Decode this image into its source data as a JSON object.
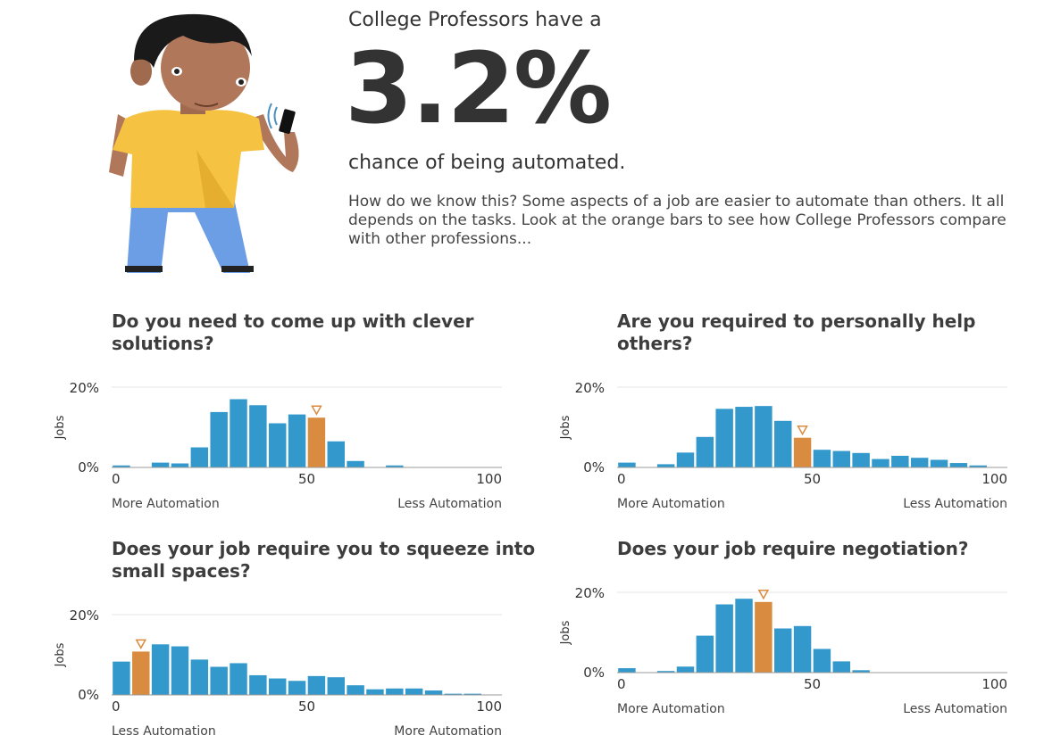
{
  "header": {
    "prefix": "College Professors have a",
    "percent": "3.2%",
    "suffix": "chance of being automated.",
    "intro": "How do we know this? Some aspects of a job are easier to automate than others. It all depends on the tasks. Look at the orange bars to see how College Professors compare with other professions..."
  },
  "colors": {
    "bar": "#3399cc",
    "highlight": "#d98c40",
    "axis": "#999999",
    "grid": "#e6e6e6"
  },
  "illustration": {
    "icon": "person-with-phone-icon"
  },
  "chart_data": [
    {
      "type": "bar",
      "title": "Do you need to come up with clever solutions?",
      "ylabel": "Jobs",
      "xlim": [
        0,
        100
      ],
      "ylim": [
        0,
        20
      ],
      "xticks": [
        "0",
        "50",
        "100"
      ],
      "yticks": [
        "0%",
        "20%"
      ],
      "left_label": "More Automation",
      "right_label": "Less Automation",
      "bin_width": 5,
      "values": [
        0.5,
        0,
        1.2,
        1,
        5,
        13.8,
        17,
        15.5,
        11,
        13.2,
        12.4,
        6.5,
        1.6,
        0,
        0.5,
        0,
        0,
        0,
        0,
        0
      ],
      "highlight_index": 10
    },
    {
      "type": "bar",
      "title": "Are you required to personally help others?",
      "ylabel": "Jobs",
      "xlim": [
        0,
        100
      ],
      "ylim": [
        0,
        20
      ],
      "xticks": [
        "0",
        "50",
        "100"
      ],
      "yticks": [
        "0%",
        "20%"
      ],
      "left_label": "More Automation",
      "right_label": "Less Automation",
      "bin_width": 5,
      "values": [
        1.2,
        0,
        0.8,
        3.7,
        7.6,
        14.6,
        15.1,
        15.3,
        11.6,
        7.4,
        4.4,
        4.1,
        3.6,
        2.1,
        2.9,
        2.4,
        1.9,
        1.1,
        0.5,
        0
      ],
      "highlight_index": 9
    },
    {
      "type": "bar",
      "title": "Does your job require you to squeeze into small spaces?",
      "ylabel": "Jobs",
      "xlim": [
        0,
        100
      ],
      "ylim": [
        0,
        20
      ],
      "xticks": [
        "0",
        "50",
        "100"
      ],
      "yticks": [
        "0%",
        "20%"
      ],
      "left_label": "Less Automation",
      "right_label": "More Automation",
      "bin_width": 5,
      "values": [
        8.3,
        10.8,
        12.6,
        12.1,
        8.8,
        7,
        7.9,
        4.9,
        4.1,
        3.5,
        4.7,
        4.4,
        2.4,
        1.4,
        1.6,
        1.6,
        1.1,
        0.3,
        0.3,
        0
      ],
      "highlight_index": 1
    },
    {
      "type": "bar",
      "title": "Does your job require negotiation?",
      "ylabel": "Jobs",
      "xlim": [
        0,
        100
      ],
      "ylim": [
        0,
        20
      ],
      "xticks": [
        "0",
        "50",
        "100"
      ],
      "yticks": [
        "0%",
        "20%"
      ],
      "left_label": "More Automation",
      "right_label": "Less Automation",
      "bin_width": 5,
      "values": [
        1.1,
        0,
        0.4,
        1.5,
        9.2,
        17,
        18.4,
        17.6,
        11,
        11.6,
        5.9,
        2.8,
        0.6,
        0,
        0,
        0,
        0,
        0,
        0,
        0
      ],
      "highlight_index": 7
    }
  ]
}
